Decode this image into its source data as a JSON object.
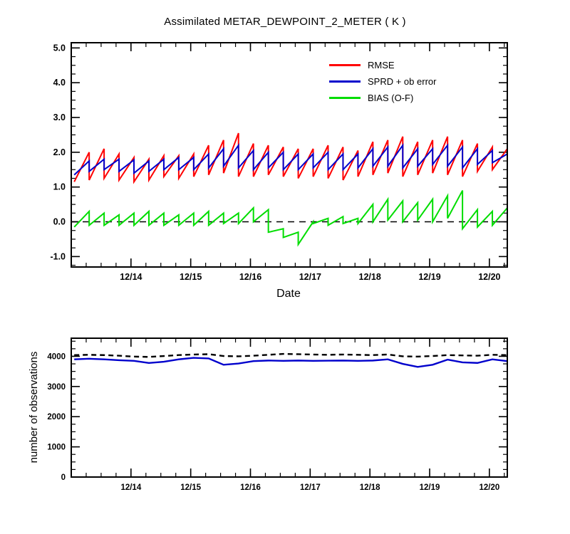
{
  "chart_data": [
    {
      "type": "line",
      "title": "Assimilated METAR_DEWPOINT_2_METER ( K )",
      "xlabel": "Date",
      "ylabel": "",
      "xlim": [
        0,
        7.3
      ],
      "ylim": [
        -1.3,
        5.15
      ],
      "xticks": [
        1,
        2,
        3,
        4,
        5,
        6,
        7
      ],
      "xtick_labels": [
        "12/14",
        "12/15",
        "12/16",
        "12/17",
        "12/18",
        "12/19",
        "12/20"
      ],
      "yticks": [
        -1,
        0,
        1,
        2,
        3,
        4,
        5
      ],
      "ytick_labels": [
        "-1.0",
        "0.0",
        "1.0",
        "2.0",
        "3.0",
        "4.0",
        "5.0"
      ],
      "x_minor_step": 0.25,
      "y_minor_step": 0.25,
      "grid": false,
      "zero_line_dashed": true,
      "legend_position": "upper-right-inside",
      "legend": [
        {
          "label": "RMSE",
          "color": "#ff0000"
        },
        {
          "label": "SPRD + ob error",
          "color": "#0000cc"
        },
        {
          "label": "BIAS (O-F)",
          "color": "#00dd00"
        }
      ],
      "sawtooth": {
        "start_x": 0.05,
        "tooth_width": 0.25
      },
      "series": [
        {
          "name": "RMSE",
          "color": "#ff0000",
          "style": "solid",
          "teeth": [
            [
              1.15,
              2.0
            ],
            [
              1.2,
              2.1
            ],
            [
              1.25,
              1.95
            ],
            [
              1.2,
              1.85
            ],
            [
              1.15,
              1.8
            ],
            [
              1.2,
              1.9
            ],
            [
              1.3,
              1.9
            ],
            [
              1.25,
              1.95
            ],
            [
              1.3,
              2.2
            ],
            [
              1.35,
              2.35
            ],
            [
              1.4,
              2.55
            ],
            [
              1.3,
              2.25
            ],
            [
              1.3,
              2.2
            ],
            [
              1.35,
              2.15
            ],
            [
              1.3,
              2.1
            ],
            [
              1.25,
              2.1
            ],
            [
              1.3,
              2.2
            ],
            [
              1.25,
              2.15
            ],
            [
              1.2,
              2.05
            ],
            [
              1.3,
              2.3
            ],
            [
              1.35,
              2.35
            ],
            [
              1.4,
              2.45
            ],
            [
              1.3,
              2.3
            ],
            [
              1.35,
              2.35
            ],
            [
              1.4,
              2.45
            ],
            [
              1.35,
              2.35
            ],
            [
              1.3,
              2.25
            ],
            [
              1.45,
              2.15
            ],
            [
              1.5,
              2.1
            ]
          ]
        },
        {
          "name": "SPRD + ob error",
          "color": "#0000cc",
          "style": "solid",
          "teeth": [
            [
              1.35,
              1.75
            ],
            [
              1.45,
              1.8
            ],
            [
              1.5,
              1.8
            ],
            [
              1.45,
              1.78
            ],
            [
              1.4,
              1.75
            ],
            [
              1.45,
              1.8
            ],
            [
              1.5,
              1.85
            ],
            [
              1.5,
              1.85
            ],
            [
              1.5,
              1.95
            ],
            [
              1.55,
              2.1
            ],
            [
              1.6,
              2.2
            ],
            [
              1.55,
              2.05
            ],
            [
              1.5,
              2.0
            ],
            [
              1.55,
              2.0
            ],
            [
              1.5,
              1.95
            ],
            [
              1.5,
              1.95
            ],
            [
              1.55,
              2.0
            ],
            [
              1.5,
              1.95
            ],
            [
              1.5,
              1.95
            ],
            [
              1.55,
              2.1
            ],
            [
              1.6,
              2.15
            ],
            [
              1.6,
              2.2
            ],
            [
              1.55,
              2.1
            ],
            [
              1.6,
              2.1
            ],
            [
              1.65,
              2.2
            ],
            [
              1.6,
              2.15
            ],
            [
              1.55,
              2.1
            ],
            [
              1.65,
              2.05
            ],
            [
              1.7,
              1.95
            ]
          ]
        },
        {
          "name": "BIAS (O-F)",
          "color": "#00dd00",
          "style": "solid",
          "teeth": [
            [
              -0.15,
              0.3
            ],
            [
              -0.1,
              0.25
            ],
            [
              -0.1,
              0.2
            ],
            [
              -0.1,
              0.25
            ],
            [
              -0.1,
              0.3
            ],
            [
              -0.1,
              0.25
            ],
            [
              -0.1,
              0.2
            ],
            [
              -0.1,
              0.25
            ],
            [
              -0.1,
              0.3
            ],
            [
              -0.1,
              0.25
            ],
            [
              -0.05,
              0.25
            ],
            [
              -0.05,
              0.4
            ],
            [
              0.0,
              0.35
            ],
            [
              -0.3,
              -0.2
            ],
            [
              -0.45,
              -0.3
            ],
            [
              -0.65,
              0.0
            ],
            [
              -0.05,
              0.1
            ],
            [
              -0.1,
              0.15
            ],
            [
              -0.05,
              0.1
            ],
            [
              -0.05,
              0.5
            ],
            [
              0.0,
              0.65
            ],
            [
              0.05,
              0.6
            ],
            [
              0.0,
              0.55
            ],
            [
              0.05,
              0.65
            ],
            [
              0.0,
              0.75
            ],
            [
              0.1,
              0.9
            ],
            [
              -0.2,
              0.35
            ],
            [
              -0.15,
              0.3
            ],
            [
              -0.1,
              0.4
            ]
          ]
        }
      ]
    },
    {
      "type": "line",
      "title": "",
      "xlabel": "",
      "ylabel": "number of observations",
      "xlim": [
        0,
        7.3
      ],
      "ylim": [
        0,
        4600
      ],
      "xticks": [
        1,
        2,
        3,
        4,
        5,
        6,
        7
      ],
      "xtick_labels": [
        "12/14",
        "12/15",
        "12/16",
        "12/17",
        "12/18",
        "12/19",
        "12/20"
      ],
      "yticks": [
        0,
        1000,
        2000,
        3000,
        4000
      ],
      "ytick_labels": [
        "0",
        "1000",
        "2000",
        "3000",
        "4000"
      ],
      "x_minor_step": 0.25,
      "y_minor_step": 250,
      "grid": false,
      "zero_line_dashed": false,
      "series": [
        {
          "name": "blue solid line",
          "color": "#0000cc",
          "style": "solid",
          "x": [
            0.05,
            0.3,
            0.55,
            0.8,
            1.05,
            1.3,
            1.55,
            1.8,
            2.05,
            2.3,
            2.55,
            2.8,
            3.05,
            3.3,
            3.55,
            3.8,
            4.05,
            4.3,
            4.55,
            4.8,
            5.05,
            5.3,
            5.55,
            5.8,
            6.05,
            6.3,
            6.55,
            6.8,
            7.05,
            7.3
          ],
          "y": [
            3900,
            3920,
            3900,
            3870,
            3850,
            3780,
            3820,
            3900,
            3950,
            3930,
            3720,
            3760,
            3840,
            3860,
            3850,
            3860,
            3850,
            3855,
            3860,
            3850,
            3860,
            3900,
            3750,
            3650,
            3720,
            3890,
            3800,
            3780,
            3900,
            3840
          ]
        },
        {
          "name": "black dashed line",
          "color": "#000000",
          "style": "dashed",
          "x": [
            0.05,
            0.3,
            0.55,
            0.8,
            1.05,
            1.3,
            1.55,
            1.8,
            2.05,
            2.3,
            2.55,
            2.8,
            3.05,
            3.3,
            3.55,
            3.8,
            4.05,
            4.3,
            4.55,
            4.8,
            5.05,
            5.3,
            5.55,
            5.8,
            6.05,
            6.3,
            6.55,
            6.8,
            7.05,
            7.3
          ],
          "y": [
            4040,
            4050,
            4040,
            4020,
            3990,
            3980,
            4010,
            4040,
            4060,
            4070,
            4010,
            4000,
            4020,
            4050,
            4080,
            4070,
            4060,
            4050,
            4060,
            4050,
            4040,
            4060,
            4000,
            3990,
            4010,
            4040,
            4030,
            4020,
            4050,
            4040
          ]
        }
      ]
    }
  ]
}
